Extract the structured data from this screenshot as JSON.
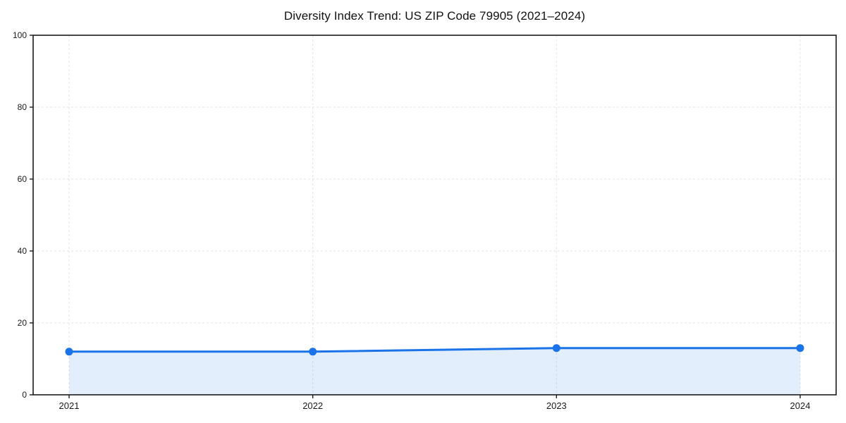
{
  "chart_data": {
    "type": "line",
    "title": "Diversity Index Trend: US ZIP Code 79905 (2021–2024)",
    "categories": [
      "2021",
      "2022",
      "2023",
      "2024"
    ],
    "series": [
      {
        "name": "Diversity Index",
        "values": [
          12,
          12,
          13,
          13
        ]
      }
    ],
    "xlabel": "",
    "ylabel": "",
    "ylim": [
      0,
      100
    ],
    "yticks": [
      0,
      20,
      40,
      60,
      80,
      100
    ],
    "grid": true,
    "grid_style": "dashed",
    "legend_position": "none",
    "marker": "circle",
    "area_fill": true,
    "colors": {
      "line": "#1a73e8",
      "marker": "#1a73e8",
      "area_fill": "rgba(26,115,232,0.12)",
      "grid": "#e3e3e3",
      "axis": "#1a1a1a",
      "tick_text": "#1a1a1a",
      "background": "#ffffff"
    }
  }
}
